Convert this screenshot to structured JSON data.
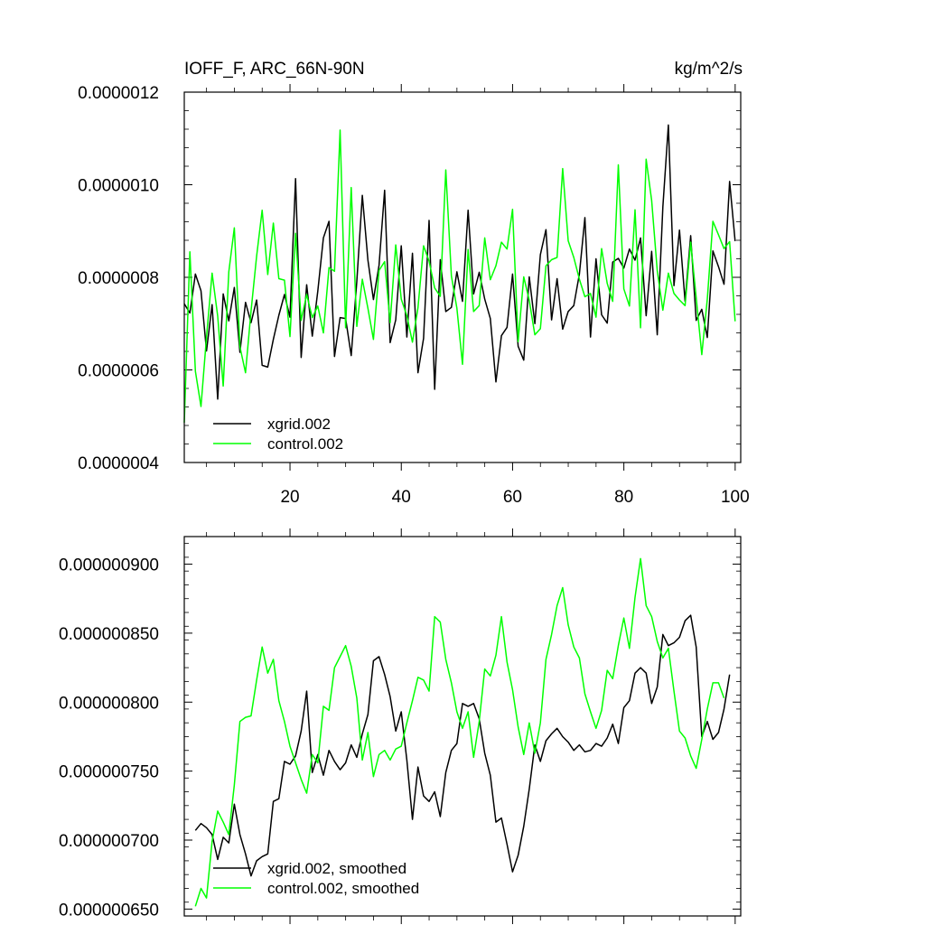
{
  "chart_data": [
    {
      "type": "line",
      "title_left": "IOFF_F, ARC_66N-90N",
      "title_right": "kg/m^2/s",
      "xlim": [
        1,
        101
      ],
      "ylim": [
        4e-07,
        1.2e-06
      ],
      "x_ticks": [
        20,
        40,
        60,
        80,
        100
      ],
      "x_tick_labels": [
        "20",
        "40",
        "60",
        "80",
        "100"
      ],
      "y_ticks": [
        4e-07,
        6e-07,
        8e-07,
        1e-06,
        1.2e-06
      ],
      "y_tick_labels": [
        "0.0000004",
        "0.0000006",
        "0.0000008",
        "0.0000010",
        "0.0000012"
      ],
      "x_start": 1,
      "series": [
        {
          "name": "xgrid.002",
          "color": "#000000",
          "values": [
            7.43e-07,
            7.23e-07,
            8.07e-07,
            7.71e-07,
            6.41e-07,
            7.41e-07,
            5.37e-07,
            7.64e-07,
            7.06e-07,
            7.78e-07,
            6.38e-07,
            7.46e-07,
            7.02e-07,
            7.51e-07,
            6.1e-07,
            6.06e-07,
            6.66e-07,
            7.18e-07,
            7.63e-07,
            7.14e-07,
            1.013e-06,
            6.27e-07,
            7.84e-07,
            6.73e-07,
            7.7e-07,
            8.85e-07,
            9.21e-07,
            6.29e-07,
            7.13e-07,
            7.11e-07,
            6.31e-07,
            7.91e-07,
            9.77e-07,
            8.37e-07,
            7.52e-07,
            8.26e-07,
            9.88e-07,
            6.59e-07,
            7.08e-07,
            8.68e-07,
            6.71e-07,
            8.52e-07,
            5.94e-07,
            6.68e-07,
            9.23e-07,
            5.58e-07,
            8.38e-07,
            7.26e-07,
            7.35e-07,
            8.12e-07,
            7.48e-07,
            9.45e-07,
            7.64e-07,
            8.11e-07,
            7.53e-07,
            7.11e-07,
            5.74e-07,
            6.74e-07,
            6.92e-07,
            8.07e-07,
            6.51e-07,
            6.21e-07,
            8.01e-07,
            7e-07,
            8.49e-07,
            9.03e-07,
            7.08e-07,
            7.97e-07,
            6.88e-07,
            7.26e-07,
            7.39e-07,
            8.07e-07,
            9.29e-07,
            6.71e-07,
            8.4e-07,
            7.19e-07,
            7.01e-07,
            8.33e-07,
            8.41e-07,
            8.2e-07,
            8.61e-07,
            8.37e-07,
            8.85e-07,
            7.17e-07,
            8.56e-07,
            6.76e-07,
            9.52e-07,
            1.129e-06,
            7.82e-07,
            9.02e-07,
            7.48e-07,
            8.9e-07,
            7.07e-07,
            7.31e-07,
            6.7e-07,
            8.57e-07,
            8.23e-07,
            7.85e-07,
            1.007e-06,
            8.78e-07
          ]
        },
        {
          "name": "control.002",
          "color": "#00ff00",
          "values": [
            4.86e-07,
            8.55e-07,
            5.97e-07,
            5.21e-07,
            6.71e-07,
            8.09e-07,
            7.16e-07,
            5.65e-07,
            8.12e-07,
            9.07e-07,
            6.5e-07,
            5.94e-07,
            7.27e-07,
            8.46e-07,
            9.45e-07,
            8.06e-07,
            9.17e-07,
            7.97e-07,
            7.94e-07,
            6.72e-07,
            8.95e-07,
            7.07e-07,
            7.63e-07,
            7.13e-07,
            7.38e-07,
            6.8e-07,
            8.21e-07,
            8.13e-07,
            1.118e-06,
            6.91e-07,
            9.94e-07,
            6.94e-07,
            7.96e-07,
            7.33e-07,
            6.66e-07,
            8.15e-07,
            8.34e-07,
            7.02e-07,
            8.7e-07,
            7.53e-07,
            7.17e-07,
            6.6e-07,
            7.34e-07,
            8.68e-07,
            8.35e-07,
            7.77e-07,
            7.59e-07,
            1.032e-06,
            8.03e-07,
            7.33e-07,
            6.12e-07,
            8.6e-07,
            7.26e-07,
            7.39e-07,
            8.85e-07,
            7.95e-07,
            8.25e-07,
            8.76e-07,
            8.61e-07,
            9.47e-07,
            6.61e-07,
            8.01e-07,
            7.5e-07,
            6.76e-07,
            6.89e-07,
            8.25e-07,
            8.38e-07,
            8.43e-07,
            1.035e-06,
            8.79e-07,
            8.43e-07,
            7.96e-07,
            7.58e-07,
            7.65e-07,
            7.14e-07,
            8.62e-07,
            7.87e-07,
            7.48e-07,
            1.043e-06,
            7.75e-07,
            7.38e-07,
            9.46e-07,
            6.91e-07,
            1.055e-06,
            9.66e-07,
            8.14e-07,
            7.29e-07,
            8.09e-07,
            7.65e-07,
            7.51e-07,
            7.39e-07,
            8.76e-07,
            7.56e-07,
            6.33e-07,
            7.53e-07,
            9.21e-07,
            8.92e-07,
            8.62e-07,
            8.77e-07,
            7.05e-07
          ]
        }
      ],
      "legend": [
        "xgrid.002",
        "control.002"
      ],
      "legend_position": "bottom-left"
    },
    {
      "type": "line",
      "xlim": [
        1,
        101
      ],
      "ylim": [
        6.45e-07,
        9.2e-07
      ],
      "x_ticks": [
        20,
        40,
        60,
        80,
        100
      ],
      "x_tick_labels": [],
      "y_ticks": [
        6.5e-07,
        7e-07,
        7.5e-07,
        8e-07,
        8.5e-07,
        9e-07
      ],
      "y_tick_labels": [
        "0.000000650",
        "0.000000700",
        "0.000000750",
        "0.000000800",
        "0.000000850",
        "0.000000900"
      ],
      "x_start": 3,
      "series": [
        {
          "name": "xgrid.002, smoothed",
          "color": "#000000",
          "values": [
            7.07e-07,
            7.12e-07,
            7.09e-07,
            7.04e-07,
            6.86e-07,
            7.02e-07,
            6.98e-07,
            7.26e-07,
            7.04e-07,
            6.9e-07,
            6.74e-07,
            6.85e-07,
            6.88e-07,
            6.9e-07,
            7.28e-07,
            7.3e-07,
            7.57e-07,
            7.55e-07,
            7.61e-07,
            7.79e-07,
            8.08e-07,
            7.49e-07,
            7.62e-07,
            7.47e-07,
            7.65e-07,
            7.57e-07,
            7.51e-07,
            7.56e-07,
            7.69e-07,
            7.6e-07,
            7.77e-07,
            7.91e-07,
            8.3e-07,
            8.33e-07,
            8.2e-07,
            8.04e-07,
            7.79e-07,
            7.93e-07,
            7.58e-07,
            7.15e-07,
            7.53e-07,
            7.32e-07,
            7.28e-07,
            7.35e-07,
            7.17e-07,
            7.49e-07,
            7.65e-07,
            7.7e-07,
            7.99e-07,
            7.97e-07,
            7.99e-07,
            7.88e-07,
            7.63e-07,
            7.47e-07,
            7.13e-07,
            7.16e-07,
            6.97e-07,
            6.77e-07,
            6.89e-07,
            7.1e-07,
            7.37e-07,
            7.69e-07,
            7.57e-07,
            7.72e-07,
            7.77e-07,
            7.81e-07,
            7.75e-07,
            7.71e-07,
            7.65e-07,
            7.69e-07,
            7.64e-07,
            7.65e-07,
            7.7e-07,
            7.68e-07,
            7.74e-07,
            7.84e-07,
            7.7e-07,
            7.96e-07,
            8.01e-07,
            8.21e-07,
            8.25e-07,
            8.21e-07,
            7.99e-07,
            8.11e-07,
            8.49e-07,
            8.41e-07,
            8.43e-07,
            8.47e-07,
            8.59e-07,
            8.63e-07,
            8.4e-07,
            7.75e-07,
            7.86e-07,
            7.73e-07,
            7.78e-07,
            7.95e-07,
            8.2e-07
          ]
        },
        {
          "name": "control.002, smoothed",
          "color": "#00ff00",
          "values": [
            6.52e-07,
            6.65e-07,
            6.58e-07,
            6.99e-07,
            7.21e-07,
            7.13e-07,
            7.04e-07,
            7.4e-07,
            7.86e-07,
            7.89e-07,
            7.9e-07,
            8.16e-07,
            8.4e-07,
            8.21e-07,
            8.31e-07,
            8.01e-07,
            7.86e-07,
            7.68e-07,
            7.56e-07,
            7.44e-07,
            7.34e-07,
            7.62e-07,
            7.56e-07,
            7.97e-07,
            7.94e-07,
            8.25e-07,
            8.33e-07,
            8.41e-07,
            8.26e-07,
            8.03e-07,
            7.58e-07,
            7.78e-07,
            7.46e-07,
            7.62e-07,
            7.65e-07,
            7.58e-07,
            7.66e-07,
            7.68e-07,
            7.85e-07,
            8.01e-07,
            8.18e-07,
            8.16e-07,
            8.08e-07,
            8.62e-07,
            8.58e-07,
            8.31e-07,
            8.14e-07,
            7.93e-07,
            7.81e-07,
            7.93e-07,
            7.6e-07,
            7.86e-07,
            8.24e-07,
            8.19e-07,
            8.34e-07,
            8.62e-07,
            8.29e-07,
            8.09e-07,
            7.82e-07,
            7.62e-07,
            7.85e-07,
            7.63e-07,
            7.85e-07,
            8.31e-07,
            8.49e-07,
            8.7e-07,
            8.83e-07,
            8.56e-07,
            8.4e-07,
            8.32e-07,
            8.06e-07,
            7.93e-07,
            7.81e-07,
            7.94e-07,
            8.23e-07,
            8.17e-07,
            8.41e-07,
            8.61e-07,
            8.39e-07,
            8.76e-07,
            9.04e-07,
            8.7e-07,
            8.62e-07,
            8.44e-07,
            8.32e-07,
            8.39e-07,
            8.08e-07,
            7.79e-07,
            7.74e-07,
            7.61e-07,
            7.52e-07,
            7.73e-07,
            7.95e-07,
            8.14e-07,
            8.14e-07,
            8.03e-07
          ]
        }
      ],
      "legend": [
        "xgrid.002, smoothed",
        "control.002, smoothed"
      ],
      "legend_position": "bottom-left"
    }
  ]
}
